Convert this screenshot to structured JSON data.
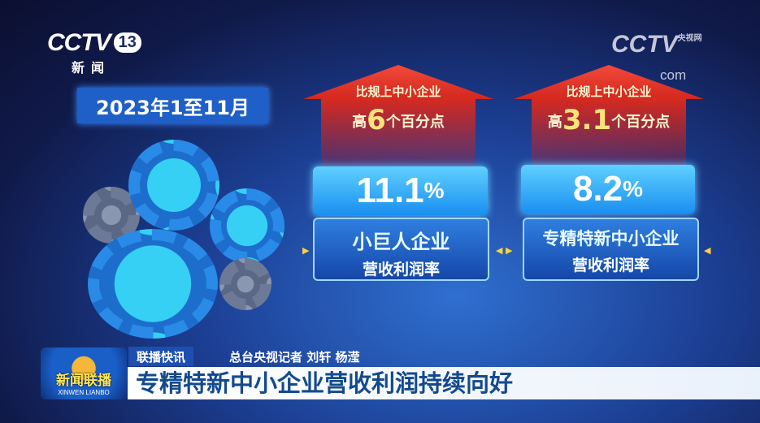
{
  "channel": {
    "logo": "CCTV",
    "number": "13",
    "name": "新闻",
    "watermark": "CCTV",
    "watermark_small": "央视网",
    "watermark_com": "com"
  },
  "date_label": "2023年1至11月",
  "cards": [
    {
      "compare_line": "比规上中小企业",
      "diff_prefix": "高",
      "diff_value": "6",
      "diff_suffix": "个百分点",
      "value": "11.1",
      "unit": "%",
      "label_main": "小巨人企业",
      "label_sub": "营收利润率"
    },
    {
      "compare_line": "比规上中小企业",
      "diff_prefix": "高",
      "diff_value": "3.1",
      "diff_suffix": "个百分点",
      "value": "8.2",
      "unit": "%",
      "label_main": "专精特新中小企业",
      "label_sub": "营收利润率"
    }
  ],
  "lower_third": {
    "program_cn": "新闻联播",
    "program_en": "XINWEN LIANBO",
    "tag": "联播快讯",
    "reporter": "总台央视记者 刘轩 杨滢",
    "headline": "专精特新中小企业营收利润持续向好"
  },
  "colors": {
    "arrow": "#d92a1f",
    "value_box": "#3bb5ff",
    "headline_text": "#134a8e"
  }
}
